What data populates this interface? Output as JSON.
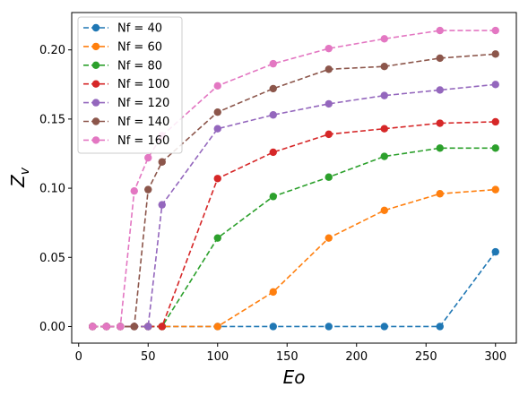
{
  "chart_data": {
    "type": "line",
    "title": "",
    "xlabel": "Eo",
    "ylabel": "Z",
    "ylabel_subscript": "v",
    "xlim": [
      -5,
      315
    ],
    "ylim": [
      -0.012,
      0.227
    ],
    "xticks": [
      0,
      50,
      100,
      150,
      200,
      250,
      300
    ],
    "xtick_labels": [
      "0",
      "50",
      "100",
      "150",
      "200",
      "250",
      "300"
    ],
    "yticks": [
      0.0,
      0.05,
      0.1,
      0.15,
      0.2
    ],
    "ytick_labels": [
      "0.00",
      "0.05",
      "0.10",
      "0.15",
      "0.20"
    ],
    "grid": false,
    "legend_position": "top-left",
    "line_style": "dashed",
    "marker": "circle",
    "series": [
      {
        "name": "Nf =  40",
        "color": "#1f77b4",
        "x": [
          10,
          20,
          30,
          40,
          50,
          60,
          100,
          140,
          180,
          220,
          260,
          300
        ],
        "y": [
          0,
          0,
          0,
          0,
          0,
          0,
          0,
          0,
          0,
          0,
          0,
          0.054
        ]
      },
      {
        "name": "Nf =  60",
        "color": "#ff7f0e",
        "x": [
          10,
          20,
          30,
          40,
          50,
          60,
          100,
          140,
          180,
          220,
          260,
          300
        ],
        "y": [
          0,
          0,
          0,
          0,
          0,
          0,
          0,
          0.025,
          0.064,
          0.084,
          0.096,
          0.099
        ]
      },
      {
        "name": "Nf =  80",
        "color": "#2ca02c",
        "x": [
          10,
          20,
          30,
          40,
          50,
          60,
          100,
          140,
          180,
          220,
          260,
          300
        ],
        "y": [
          0,
          0,
          0,
          0,
          0,
          0,
          0.064,
          0.094,
          0.108,
          0.123,
          0.129,
          0.129
        ]
      },
      {
        "name": "Nf =  100",
        "color": "#d62728",
        "x": [
          10,
          20,
          30,
          40,
          50,
          60,
          100,
          140,
          180,
          220,
          260,
          300
        ],
        "y": [
          0,
          0,
          0,
          0,
          0,
          0,
          0.107,
          0.126,
          0.139,
          0.143,
          0.147,
          0.148
        ]
      },
      {
        "name": "Nf =  120",
        "color": "#9467bd",
        "x": [
          10,
          20,
          30,
          40,
          50,
          60,
          100,
          140,
          180,
          220,
          260,
          300
        ],
        "y": [
          0,
          0,
          0,
          0,
          0,
          0.088,
          0.143,
          0.153,
          0.161,
          0.167,
          0.171,
          0.175
        ]
      },
      {
        "name": "Nf =  140",
        "color": "#8c564b",
        "x": [
          10,
          20,
          30,
          40,
          50,
          60,
          100,
          140,
          180,
          220,
          260,
          300
        ],
        "y": [
          0,
          0,
          0,
          0,
          0.099,
          0.119,
          0.155,
          0.172,
          0.186,
          0.188,
          0.194,
          0.197
        ]
      },
      {
        "name": "Nf =  160",
        "color": "#e377c2",
        "x": [
          10,
          20,
          30,
          40,
          50,
          60,
          100,
          140,
          180,
          220,
          260,
          300
        ],
        "y": [
          0,
          0,
          0,
          0.098,
          0.122,
          0.138,
          0.174,
          0.19,
          0.201,
          0.208,
          0.214,
          0.214
        ]
      }
    ]
  }
}
